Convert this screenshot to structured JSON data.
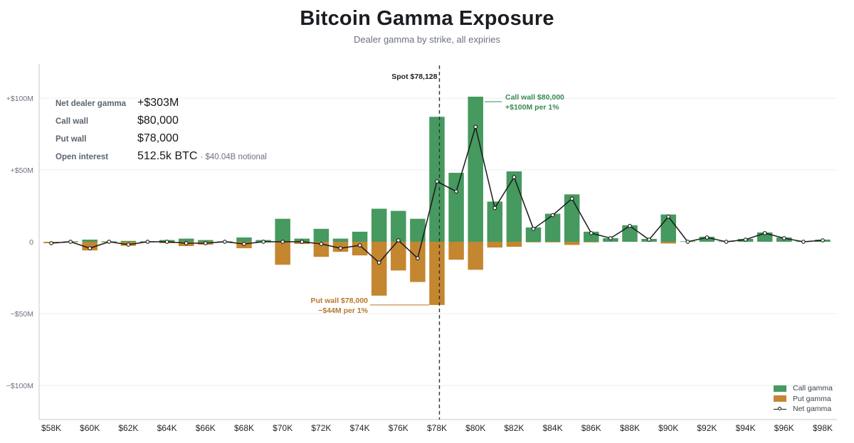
{
  "colors": {
    "call": "#46995f",
    "put": "#c4862f",
    "net": "#1a1a1a",
    "call_text": "#3a8a52",
    "put_text": "#b9772a"
  },
  "chart_data": {
    "type": "bar",
    "title": "Bitcoin Gamma Exposure",
    "subtitle": "Dealer gamma by strike, all expiries",
    "x_unit": "USD strike",
    "y_unit": "USD millions",
    "ylim": [
      -123,
      123
    ],
    "y_ticks": [
      {
        "value": 100,
        "label": "+$100M"
      },
      {
        "value": 50,
        "label": "+$50M"
      },
      {
        "value": 0,
        "label": "0"
      },
      {
        "value": -50,
        "label": "−$50M"
      },
      {
        "value": -100,
        "label": "−$100M"
      }
    ],
    "x_ticks": [
      {
        "value": 58000,
        "label": "$58K"
      },
      {
        "value": 60000,
        "label": "$60K"
      },
      {
        "value": 62000,
        "label": "$62K"
      },
      {
        "value": 64000,
        "label": "$64K"
      },
      {
        "value": 66000,
        "label": "$66K"
      },
      {
        "value": 68000,
        "label": "$68K"
      },
      {
        "value": 70000,
        "label": "$70K"
      },
      {
        "value": 72000,
        "label": "$72K"
      },
      {
        "value": 74000,
        "label": "$74K"
      },
      {
        "value": 76000,
        "label": "$76K"
      },
      {
        "value": 78000,
        "label": "$78K"
      },
      {
        "value": 80000,
        "label": "$80K"
      },
      {
        "value": 82000,
        "label": "$82K"
      },
      {
        "value": 84000,
        "label": "$84K"
      },
      {
        "value": 86000,
        "label": "$86K"
      },
      {
        "value": 88000,
        "label": "$88K"
      },
      {
        "value": 90000,
        "label": "$90K"
      },
      {
        "value": 92000,
        "label": "$92K"
      },
      {
        "value": 94000,
        "label": "$94K"
      },
      {
        "value": 96000,
        "label": "$96K"
      },
      {
        "value": 98000,
        "label": "$98K"
      }
    ],
    "x": [
      58000,
      59000,
      60000,
      61000,
      62000,
      63000,
      64000,
      65000,
      66000,
      67000,
      68000,
      69000,
      70000,
      71000,
      72000,
      73000,
      74000,
      75000,
      76000,
      77000,
      78000,
      79000,
      80000,
      81000,
      82000,
      83000,
      84000,
      85000,
      86000,
      87000,
      88000,
      89000,
      90000,
      91000,
      92000,
      93000,
      94000,
      95000,
      96000,
      97000,
      98000
    ],
    "series": [
      {
        "name": "Call gamma",
        "values": [
          0,
          0.3,
          1.5,
          0.3,
          0.6,
          0.3,
          1.2,
          2.2,
          1.2,
          0.3,
          3,
          1.2,
          16,
          2.2,
          9,
          2.2,
          7,
          23,
          21.5,
          16,
          87,
          48,
          101,
          28,
          49,
          10,
          19.5,
          33,
          7,
          2.5,
          11.5,
          2,
          19,
          0.3,
          3.5,
          0.3,
          2,
          6.5,
          3,
          0.3,
          1.5
        ]
      },
      {
        "name": "Put gamma",
        "values": [
          -1,
          -0.3,
          -6,
          -0.3,
          -2.8,
          -0.3,
          -1,
          -3,
          -2,
          -0.3,
          -4.5,
          -0.3,
          -16,
          -1.5,
          -10.5,
          -7,
          -9.5,
          -37.5,
          -20,
          -28,
          -44,
          -12.5,
          -19.5,
          -4,
          -3.5,
          -0.3,
          -0.3,
          -2.2,
          -0.3,
          0,
          0,
          0,
          -1.2,
          0,
          0,
          0,
          0,
          0,
          0,
          0,
          0
        ]
      },
      {
        "name": "Net gamma",
        "values": [
          -1,
          0,
          -4.5,
          0,
          -2,
          0,
          0,
          -1,
          -1,
          0,
          -1.5,
          0,
          0,
          0,
          -1.5,
          -4.5,
          -2.5,
          -14.5,
          1,
          -11.5,
          42,
          35,
          80,
          23.5,
          45,
          9,
          18.5,
          30,
          6,
          2.5,
          11,
          1.5,
          17.5,
          0,
          3,
          0,
          1.5,
          6,
          2.5,
          0,
          1
        ]
      }
    ],
    "spot": {
      "value": 78128,
      "label": "Spot $78,128"
    },
    "annotations": [
      {
        "id": "call-wall",
        "x": 80000,
        "y": 100,
        "line1": "Call wall $80,000",
        "line2": "+$100M per 1%"
      },
      {
        "id": "put-wall",
        "x": 78000,
        "y": -44,
        "line1": "Put wall $78,000",
        "line2": "−$44M per 1%"
      }
    ],
    "legend": {
      "position": "bottom-right",
      "items": [
        "Call gamma",
        "Put gamma",
        "Net gamma"
      ]
    },
    "grid": true
  },
  "stats": [
    {
      "label": "Net dealer gamma",
      "value": "+$303M",
      "note": ""
    },
    {
      "label": "Call wall",
      "value": "$80,000",
      "note": ""
    },
    {
      "label": "Put wall",
      "value": "$78,000",
      "note": ""
    },
    {
      "label": "Open interest",
      "value": "512.5k BTC",
      "note": "· $40.04B notional"
    }
  ]
}
